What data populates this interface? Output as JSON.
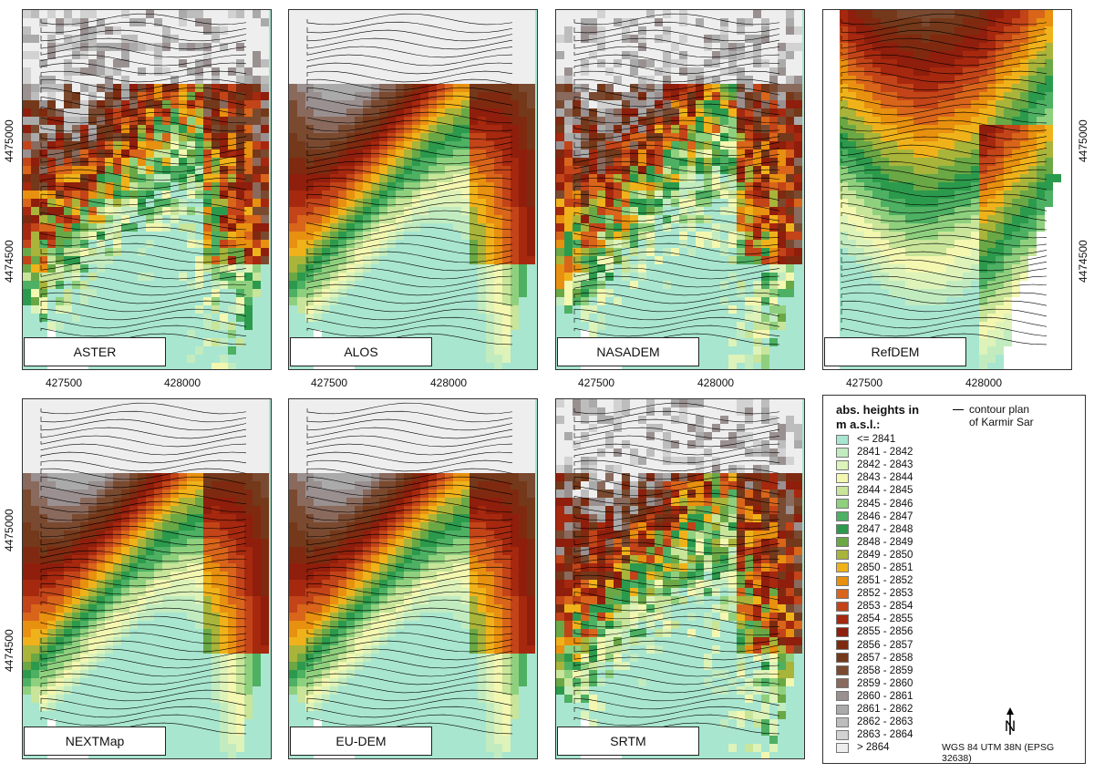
{
  "panels": [
    {
      "id": "aster",
      "label": "ASTER",
      "x_ticks": [
        "427500",
        "428000"
      ],
      "y_ticks": [
        "4475000",
        "4474500"
      ],
      "style": "mottled"
    },
    {
      "id": "alos",
      "label": "ALOS",
      "x_ticks": [
        "427500",
        "428000"
      ],
      "y_ticks": [],
      "style": "smooth"
    },
    {
      "id": "nasadem",
      "label": "NASADEM",
      "x_ticks": [
        "427500",
        "428000"
      ],
      "y_ticks": [],
      "style": "mottled"
    },
    {
      "id": "refdem",
      "label": "RefDEM",
      "x_ticks": [
        "427500",
        "428000"
      ],
      "y_ticks": [
        "4475000",
        "4474500"
      ],
      "style": "ref"
    },
    {
      "id": "nextmap",
      "label": "NEXTMap",
      "x_ticks": [],
      "y_ticks": [
        "4475000",
        "4474500"
      ],
      "style": "smooth"
    },
    {
      "id": "eudem",
      "label": "EU-DEM",
      "x_ticks": [],
      "y_ticks": [],
      "style": "smooth"
    },
    {
      "id": "srtm",
      "label": "SRTM",
      "x_ticks": [],
      "y_ticks": [],
      "style": "mottled"
    }
  ],
  "legend": {
    "title_line1": "abs. heights in",
    "title_line2": "m a.s.l.:",
    "contour_label_line1": "contour plan",
    "contour_label_line2": "of Karmir Sar",
    "classes": [
      {
        "label": "<= 2841",
        "color": "#a8e6cf"
      },
      {
        "label": "2841 - 2842",
        "color": "#c2ecc0"
      },
      {
        "label": "2842 - 2843",
        "color": "#ddf3b9"
      },
      {
        "label": "2843 - 2844",
        "color": "#f3f7b0"
      },
      {
        "label": "2844 - 2845",
        "color": "#c8e59a"
      },
      {
        "label": "2845 - 2846",
        "color": "#8fd07e"
      },
      {
        "label": "2846 - 2847",
        "color": "#4db062"
      },
      {
        "label": "2847 - 2848",
        "color": "#2c9a4c"
      },
      {
        "label": "2848 - 2849",
        "color": "#6aa845"
      },
      {
        "label": "2849 - 2850",
        "color": "#a9b43a"
      },
      {
        "label": "2850 - 2851",
        "color": "#f0b21a"
      },
      {
        "label": "2851 - 2852",
        "color": "#e8900f"
      },
      {
        "label": "2852 - 2853",
        "color": "#d9651a"
      },
      {
        "label": "2853 - 2854",
        "color": "#c24418"
      },
      {
        "label": "2854 - 2855",
        "color": "#a6280f"
      },
      {
        "label": "2855 - 2856",
        "color": "#8f1e0c"
      },
      {
        "label": "2856 - 2857",
        "color": "#7f2a10"
      },
      {
        "label": "2857 - 2858",
        "color": "#74381a"
      },
      {
        "label": "2858 - 2859",
        "color": "#7a4a30"
      },
      {
        "label": "2859 - 2860",
        "color": "#8a6a5c"
      },
      {
        "label": "2860 - 2861",
        "color": "#9a9090"
      },
      {
        "label": "2861 - 2862",
        "color": "#aaaaaa"
      },
      {
        "label": "2862 - 2863",
        "color": "#bdbdbd"
      },
      {
        "label": "2863 - 2864",
        "color": "#d2d2d2"
      },
      {
        "label": "> 2864",
        "color": "#eeeeee"
      }
    ],
    "north_label": "N",
    "crs": "WGS 84 UTM 38N (EPSG 32638)"
  }
}
